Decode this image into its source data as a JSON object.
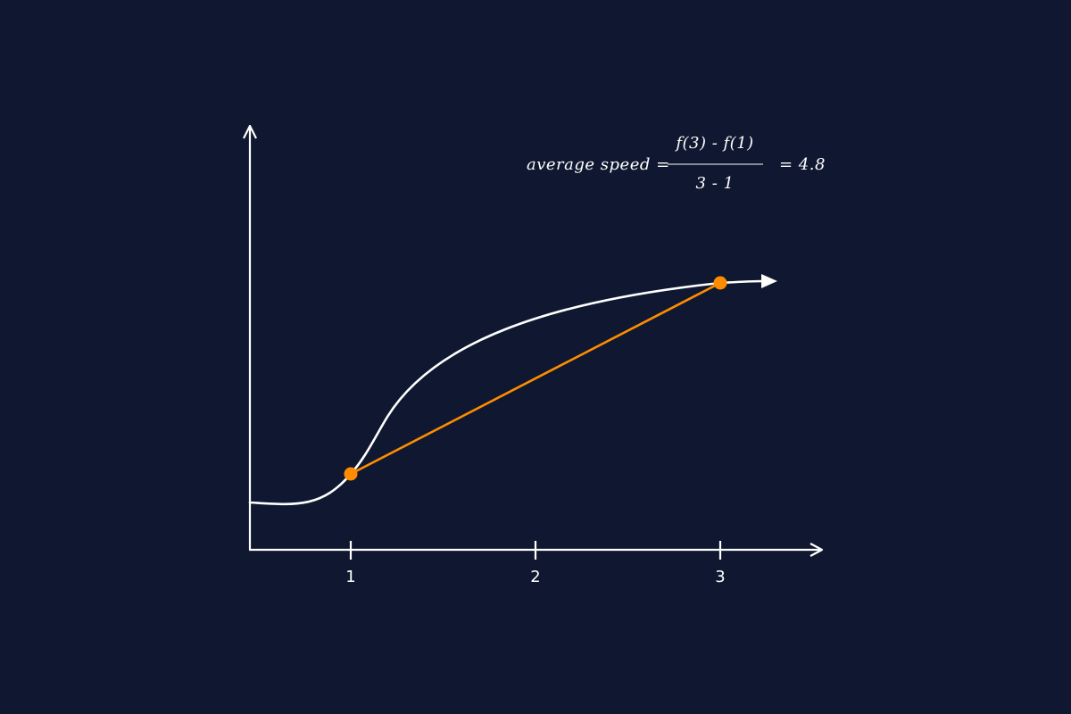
{
  "colors": {
    "background": "#0f1830",
    "axis": "#ffffff",
    "curve": "#ffffff",
    "secant": "#ff8c00",
    "points": "#ff8c00"
  },
  "axis": {
    "x_ticks": [
      "1",
      "2",
      "3"
    ]
  },
  "formula": {
    "lhs": "average speed =",
    "numerator": "f(3) - f(1)",
    "denominator": "3 - 1",
    "result": "= 4.8"
  },
  "secant_points": [
    {
      "x": 1
    },
    {
      "x": 3
    }
  ]
}
